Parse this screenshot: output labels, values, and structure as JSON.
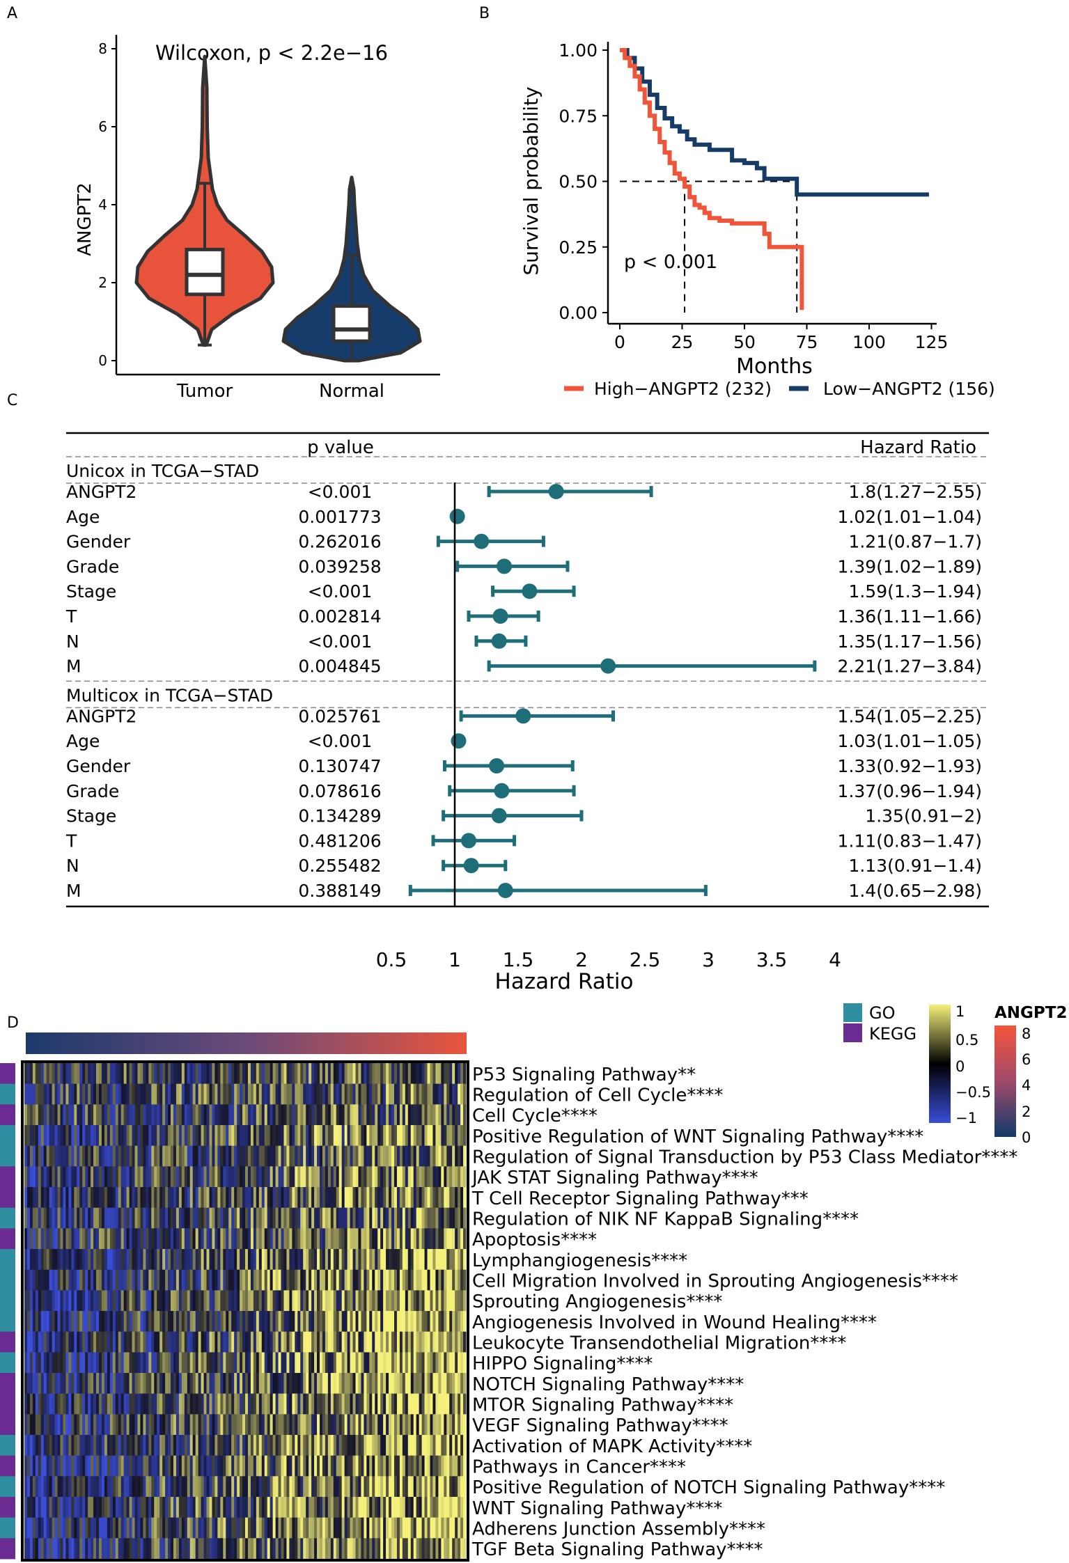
{
  "panel_labels": {
    "A": "A",
    "B": "B",
    "C": "C",
    "D": "D"
  },
  "colors": {
    "tumor": "#e8533c",
    "normal": "#163c6b",
    "high": "#f0553a",
    "low": "#163b66",
    "teal": "#1d6e78",
    "go": "#2f8fa0",
    "kegg": "#6a2c91"
  },
  "chart_data": [
    {
      "id": "A",
      "type": "violin",
      "title": "Wilcoxon, p < 2.2e−16",
      "xlabel": "",
      "ylabel": "ANGPT2",
      "ylim": [
        0,
        8
      ],
      "yticks": [
        "0",
        "2",
        "4",
        "6",
        "8"
      ],
      "categories": [
        "Tumor",
        "Normal"
      ],
      "stats": [
        {
          "group": "Tumor",
          "min": 0.4,
          "q1": 1.7,
          "median": 2.2,
          "q3": 2.85,
          "max": 4.55,
          "violin_max": 7.8,
          "violin_min": 0.4
        },
        {
          "group": "Normal",
          "min": 0.0,
          "q1": 0.5,
          "median": 0.8,
          "q3": 1.4,
          "max": 2.7,
          "violin_max": 4.7,
          "violin_min": 0.0
        }
      ]
    },
    {
      "id": "B",
      "type": "line",
      "xlabel": "Months",
      "ylabel": "Survival probability",
      "xlim": [
        0,
        125
      ],
      "ylim": [
        0,
        1
      ],
      "xticks": [
        "0",
        "25",
        "50",
        "75",
        "100",
        "125"
      ],
      "yticks": [
        "0.00",
        "0.25",
        "0.50",
        "0.75",
        "1.00"
      ],
      "annotation": "p < 0.001",
      "median_survival": [
        {
          "series": "High−ANGPT2 (232)",
          "months": 26
        },
        {
          "series": "Low−ANGPT2 (156)",
          "months": 71
        }
      ],
      "series": [
        {
          "name": "High−ANGPT2 (232)",
          "x": [
            0,
            2,
            4,
            6,
            8,
            10,
            12,
            14,
            16,
            18,
            20,
            22,
            24,
            26,
            28,
            30,
            32,
            34,
            36,
            40,
            45,
            50,
            55,
            58,
            60,
            72,
            73,
            73
          ],
          "y": [
            1,
            0.97,
            0.94,
            0.9,
            0.85,
            0.8,
            0.75,
            0.7,
            0.65,
            0.61,
            0.57,
            0.53,
            0.51,
            0.48,
            0.44,
            0.41,
            0.4,
            0.38,
            0.36,
            0.35,
            0.34,
            0.34,
            0.34,
            0.3,
            0.25,
            0.25,
            0.01,
            0.01
          ]
        },
        {
          "name": "Low−ANGPT2 (156)",
          "x": [
            0,
            3,
            6,
            9,
            12,
            15,
            18,
            21,
            24,
            27,
            30,
            36,
            40,
            45,
            50,
            55,
            58,
            65,
            70,
            71,
            71,
            124
          ],
          "y": [
            1,
            0.97,
            0.93,
            0.88,
            0.83,
            0.78,
            0.74,
            0.71,
            0.69,
            0.66,
            0.64,
            0.62,
            0.62,
            0.58,
            0.57,
            0.55,
            0.51,
            0.51,
            0.51,
            0.51,
            0.45,
            0.45
          ]
        }
      ]
    },
    {
      "id": "C",
      "type": "forest",
      "header_p": "p value",
      "header_hr": "Hazard Ratio",
      "xlabel": "Hazard Ratio",
      "xlim": [
        0.5,
        4
      ],
      "xticks": [
        "0.5",
        "1",
        "1.5",
        "2",
        "2.5",
        "3",
        "3.5",
        "4"
      ],
      "groups": [
        {
          "title": "Unicox in TCGA−STAD",
          "rows": [
            {
              "label": "ANGPT2",
              "p": "<0.001",
              "hr": 1.8,
              "lo": 1.27,
              "hi": 2.55,
              "text": "1.8(1.27−2.55)"
            },
            {
              "label": "Age",
              "p": "0.001773",
              "hr": 1.02,
              "lo": 1.01,
              "hi": 1.04,
              "text": "1.02(1.01−1.04)"
            },
            {
              "label": "Gender",
              "p": "0.262016",
              "hr": 1.21,
              "lo": 0.87,
              "hi": 1.7,
              "text": "1.21(0.87−1.7)"
            },
            {
              "label": "Grade",
              "p": "0.039258",
              "hr": 1.39,
              "lo": 1.02,
              "hi": 1.89,
              "text": "1.39(1.02−1.89)"
            },
            {
              "label": "Stage",
              "p": "<0.001",
              "hr": 1.59,
              "lo": 1.3,
              "hi": 1.94,
              "text": "1.59(1.3−1.94)"
            },
            {
              "label": "T",
              "p": "0.002814",
              "hr": 1.36,
              "lo": 1.11,
              "hi": 1.66,
              "text": "1.36(1.11−1.66)"
            },
            {
              "label": "N",
              "p": "<0.001",
              "hr": 1.35,
              "lo": 1.17,
              "hi": 1.56,
              "text": "1.35(1.17−1.56)"
            },
            {
              "label": "M",
              "p": "0.004845",
              "hr": 2.21,
              "lo": 1.27,
              "hi": 3.84,
              "text": "2.21(1.27−3.84)"
            }
          ]
        },
        {
          "title": "Multicox in TCGA−STAD",
          "rows": [
            {
              "label": "ANGPT2",
              "p": "0.025761",
              "hr": 1.54,
              "lo": 1.05,
              "hi": 2.25,
              "text": "1.54(1.05−2.25)"
            },
            {
              "label": "Age",
              "p": "<0.001",
              "hr": 1.03,
              "lo": 1.01,
              "hi": 1.05,
              "text": "1.03(1.01−1.05)"
            },
            {
              "label": "Gender",
              "p": "0.130747",
              "hr": 1.33,
              "lo": 0.92,
              "hi": 1.93,
              "text": "1.33(0.92−1.93)"
            },
            {
              "label": "Grade",
              "p": "0.078616",
              "hr": 1.37,
              "lo": 0.96,
              "hi": 1.94,
              "text": "1.37(0.96−1.94)"
            },
            {
              "label": "Stage",
              "p": "0.134289",
              "hr": 1.35,
              "lo": 0.91,
              "hi": 2,
              "text": "1.35(0.91−2)"
            },
            {
              "label": "T",
              "p": "0.481206",
              "hr": 1.11,
              "lo": 0.83,
              "hi": 1.47,
              "text": "1.11(0.83−1.47)"
            },
            {
              "label": "N",
              "p": "0.255482",
              "hr": 1.13,
              "lo": 0.91,
              "hi": 1.4,
              "text": "1.13(0.91−1.4)"
            },
            {
              "label": "M",
              "p": "0.388149",
              "hr": 1.4,
              "lo": 0.65,
              "hi": 2.98,
              "text": "1.4(0.65−2.98)"
            }
          ]
        }
      ]
    },
    {
      "id": "D",
      "type": "heatmap",
      "legend_categories": [
        "GO",
        "KEGG"
      ],
      "score_legend": {
        "ticks": [
          "1",
          "0.5",
          "0",
          "−0.5",
          "−1"
        ]
      },
      "expr_legend": {
        "title": "ANGPT2",
        "ticks": [
          "8",
          "6",
          "4",
          "2",
          "0"
        ]
      },
      "rows": [
        {
          "name": "P53 Signaling Pathway**",
          "cat": "KEGG"
        },
        {
          "name": "Regulation of Cell Cycle****",
          "cat": "GO"
        },
        {
          "name": "Cell Cycle****",
          "cat": "KEGG"
        },
        {
          "name": "Positive Regulation of WNT Signaling Pathway****",
          "cat": "GO"
        },
        {
          "name": "Regulation of Signal Transduction by P53 Class Mediator****",
          "cat": "GO"
        },
        {
          "name": "JAK STAT Signaling Pathway****",
          "cat": "KEGG"
        },
        {
          "name": "T Cell Receptor Signaling Pathway***",
          "cat": "KEGG"
        },
        {
          "name": "Regulation of NIK NF KappaB Signaling****",
          "cat": "GO"
        },
        {
          "name": "Apoptosis****",
          "cat": "KEGG"
        },
        {
          "name": "Lymphangiogenesis****",
          "cat": "GO"
        },
        {
          "name": "Cell Migration Involved in Sprouting Angiogenesis****",
          "cat": "GO"
        },
        {
          "name": "Sprouting Angiogenesis****",
          "cat": "GO"
        },
        {
          "name": "Angiogenesis Involved in Wound Healing****",
          "cat": "GO"
        },
        {
          "name": "Leukocyte Transendothelial Migration****",
          "cat": "KEGG"
        },
        {
          "name": "HIPPO Signaling****",
          "cat": "GO"
        },
        {
          "name": "NOTCH Signaling Pathway****",
          "cat": "KEGG"
        },
        {
          "name": "MTOR Signaling Pathway****",
          "cat": "KEGG"
        },
        {
          "name": "VEGF Signaling Pathway****",
          "cat": "KEGG"
        },
        {
          "name": "Activation of MAPK Activity****",
          "cat": "GO"
        },
        {
          "name": "Pathways in Cancer****",
          "cat": "KEGG"
        },
        {
          "name": "Positive Regulation of NOTCH Signaling Pathway****",
          "cat": "GO"
        },
        {
          "name": "WNT Signaling Pathway****",
          "cat": "KEGG"
        },
        {
          "name": "Adherens Junction Assembly****",
          "cat": "GO"
        },
        {
          "name": "TGF Beta Signaling Pathway****",
          "cat": "KEGG"
        }
      ]
    }
  ]
}
